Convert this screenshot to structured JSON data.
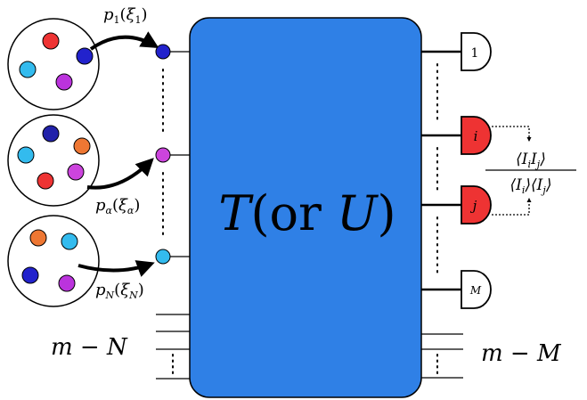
{
  "box": {
    "label": "T(or U)",
    "color": "#2f80e6"
  },
  "sources": [
    {
      "label": "p1(ξ1)",
      "photon_colors": [
        "#ee3333",
        "#3399ee",
        "#2222cc",
        "#bb33dd"
      ]
    },
    {
      "label": "pα(ξα)",
      "photon_colors": [
        "#2222aa",
        "#ee7733",
        "#33bbee",
        "#cc44dd",
        "#ee3333"
      ]
    },
    {
      "label": "pN(ξN)",
      "photon_colors": [
        "#ee7733",
        "#33bbee",
        "#2222cc",
        "#bb33dd"
      ]
    }
  ],
  "input_modes": [
    {
      "color": "#2222cc"
    },
    {
      "color": "#cc44dd"
    },
    {
      "color": "#33bbee"
    }
  ],
  "detectors": [
    {
      "label": "1",
      "color": "#ffffff"
    },
    {
      "label": "i",
      "color": "#ee3333"
    },
    {
      "label": "j",
      "color": "#ee3333"
    },
    {
      "label": "M",
      "color": "#ffffff"
    }
  ],
  "correlation": {
    "numerator": "⟨IiIj⟩",
    "denominator": "⟨Ii⟩⟨Ij⟩"
  },
  "unused_inputs_label": "m − N",
  "unused_outputs_label": "m − M"
}
